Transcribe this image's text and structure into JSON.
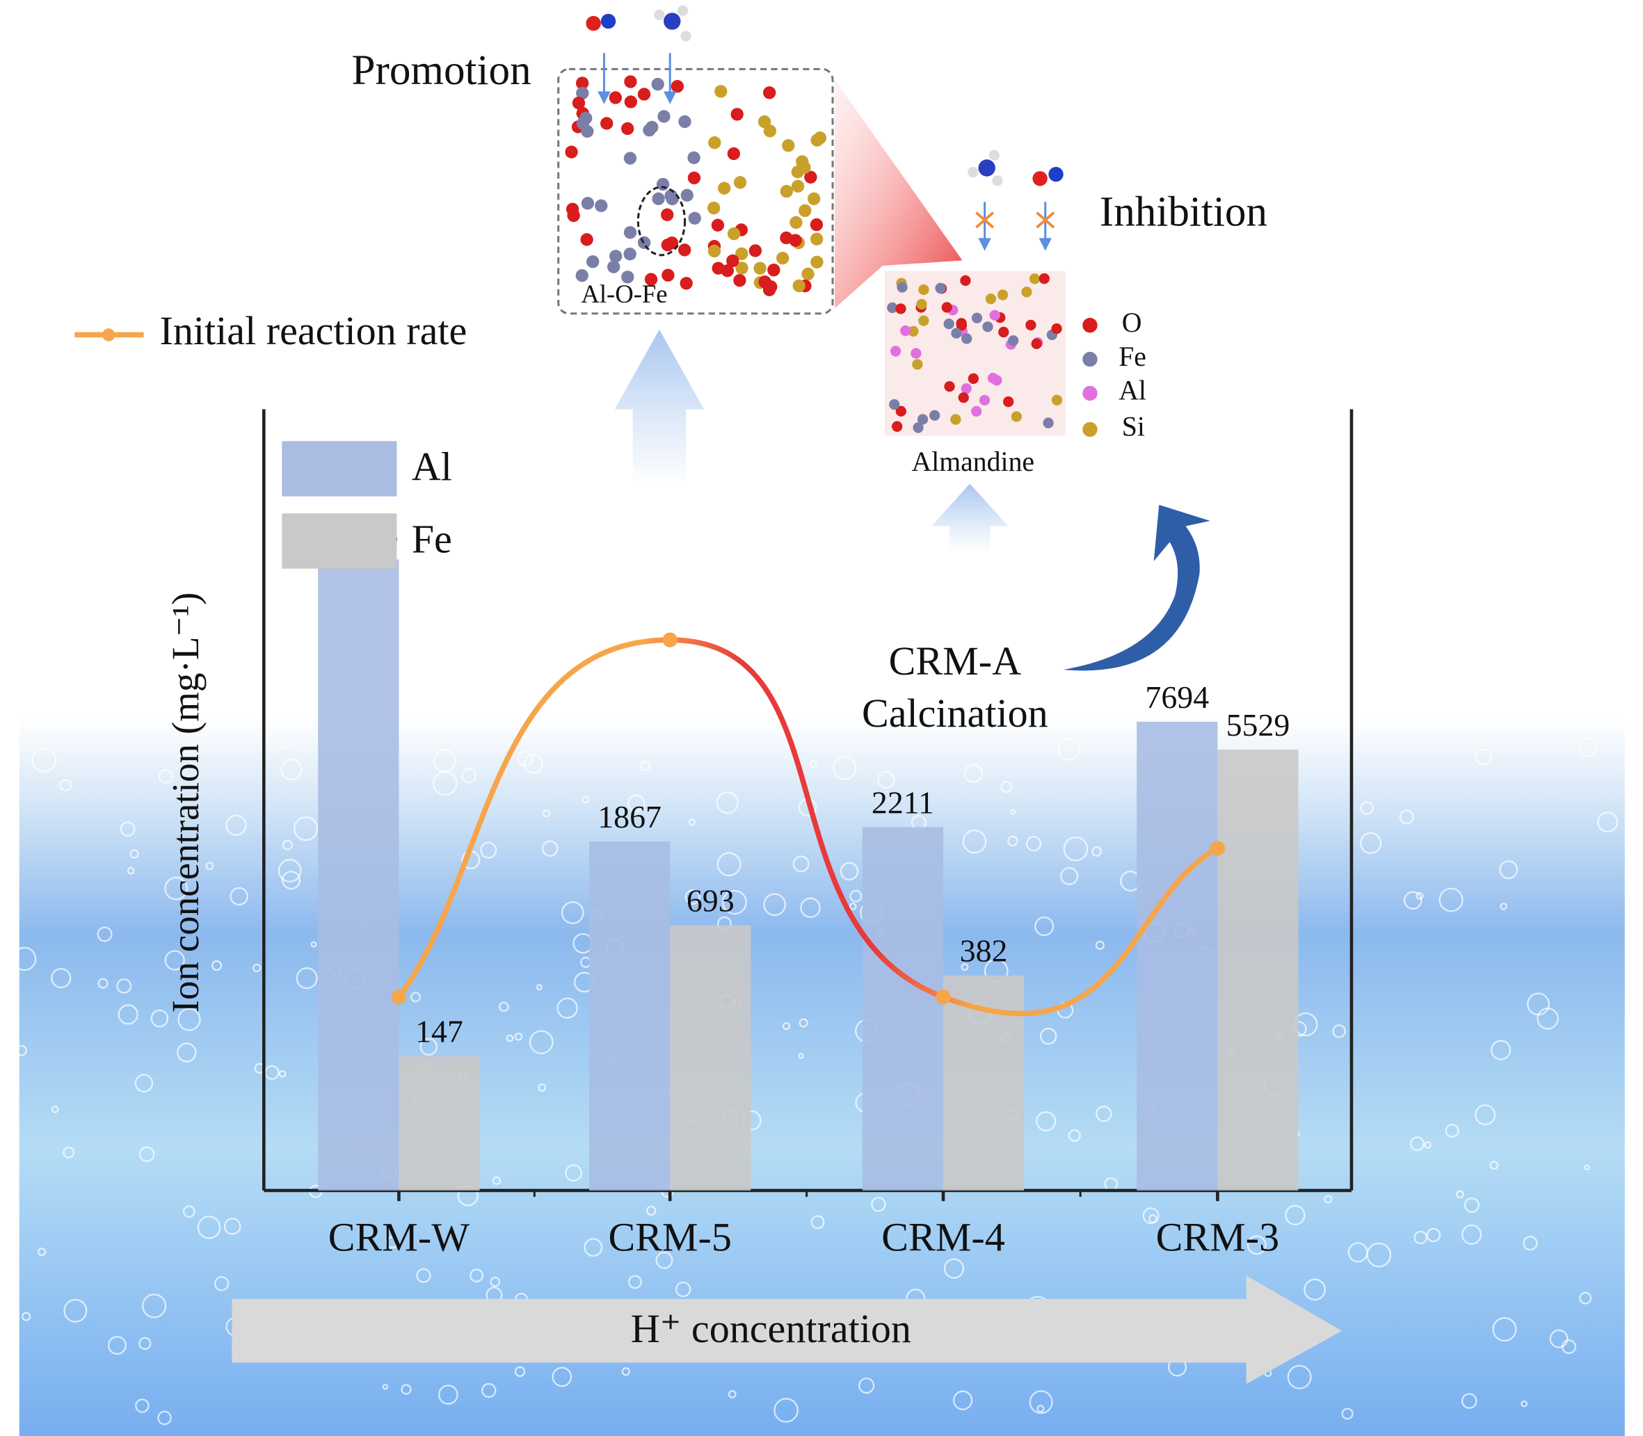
{
  "chart_data": {
    "type": "bar",
    "categories": [
      "CRM-W",
      "CRM-5",
      "CRM-4",
      "CRM-3"
    ],
    "series": [
      {
        "name": "Al",
        "color": "#a9bde3",
        "values": [
          52475,
          1867,
          2211,
          7694
        ]
      },
      {
        "name": "Fe",
        "color": "#c9c9c9",
        "values": [
          147,
          693,
          382,
          5529
        ]
      },
      {
        "name": "Initial reaction rate",
        "type": "line",
        "axis": "y2",
        "color": "#f7a54a",
        "values": [
          0.26,
          0.74,
          0.26,
          0.46
        ]
      }
    ],
    "ylabel": "Ion concentration (mg·L⁻¹)",
    "xlabel": "H⁺ concentration",
    "ylog": true,
    "ylim": [
      30,
      200000
    ],
    "y2lim": [
      0,
      1
    ],
    "legend": "top-left",
    "annotations": [
      "Promotion",
      "Inhibition",
      "CRM-A",
      "Calcination",
      "Al-O-Fe",
      "Almandine",
      "O",
      "Fe",
      "Al",
      "Si"
    ]
  }
}
